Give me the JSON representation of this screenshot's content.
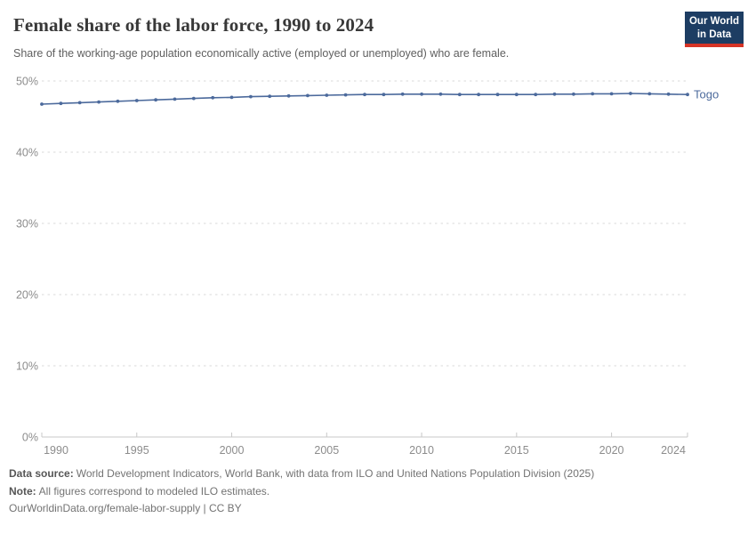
{
  "header": {
    "title": "Female share of the labor force, 1990 to 2024",
    "subtitle": "Share of the working-age population economically active (employed or unemployed) who are female.",
    "logo_line1": "Our World",
    "logo_line2": "in Data"
  },
  "chart_data": {
    "type": "line",
    "title": "Female share of the labor force, 1990 to 2024",
    "xlabel": "",
    "ylabel": "",
    "ylim": [
      0,
      50
    ],
    "yticks": [
      0,
      10,
      20,
      30,
      40,
      50
    ],
    "ytick_labels": [
      "0%",
      "10%",
      "20%",
      "30%",
      "40%",
      "50%"
    ],
    "xticks": [
      1990,
      1995,
      2000,
      2005,
      2010,
      2015,
      2020,
      2024
    ],
    "grid": "horizontal-dashed",
    "legend_position": "end-of-line",
    "years": [
      1990,
      1991,
      1992,
      1993,
      1994,
      1995,
      1996,
      1997,
      1998,
      1999,
      2000,
      2001,
      2002,
      2003,
      2004,
      2005,
      2006,
      2007,
      2008,
      2009,
      2010,
      2011,
      2012,
      2013,
      2014,
      2015,
      2016,
      2017,
      2018,
      2019,
      2020,
      2021,
      2022,
      2023,
      2024
    ],
    "series": [
      {
        "name": "Togo",
        "color": "#4c6a9c",
        "values": [
          46.75,
          46.85,
          46.95,
          47.05,
          47.15,
          47.25,
          47.35,
          47.45,
          47.55,
          47.65,
          47.7,
          47.8,
          47.85,
          47.9,
          47.95,
          48.0,
          48.05,
          48.1,
          48.1,
          48.15,
          48.15,
          48.15,
          48.1,
          48.1,
          48.1,
          48.1,
          48.1,
          48.15,
          48.15,
          48.2,
          48.2,
          48.25,
          48.2,
          48.15,
          48.1
        ]
      }
    ]
  },
  "footer": {
    "data_source_label": "Data source:",
    "data_source_text": "World Development Indicators, World Bank, with data from ILO and United Nations Population Division (2025)",
    "note_label": "Note:",
    "note_text": "All figures correspond to modeled ILO estimates.",
    "license_line": "OurWorldinData.org/female-labor-supply | CC BY"
  },
  "colors": {
    "series_line": "#4c6a9c",
    "logo_bg": "#1d3d63",
    "logo_accent": "#d63426",
    "grid": "#dadada",
    "axis": "#c8c8c8",
    "tick_text": "#8c8c8c"
  }
}
